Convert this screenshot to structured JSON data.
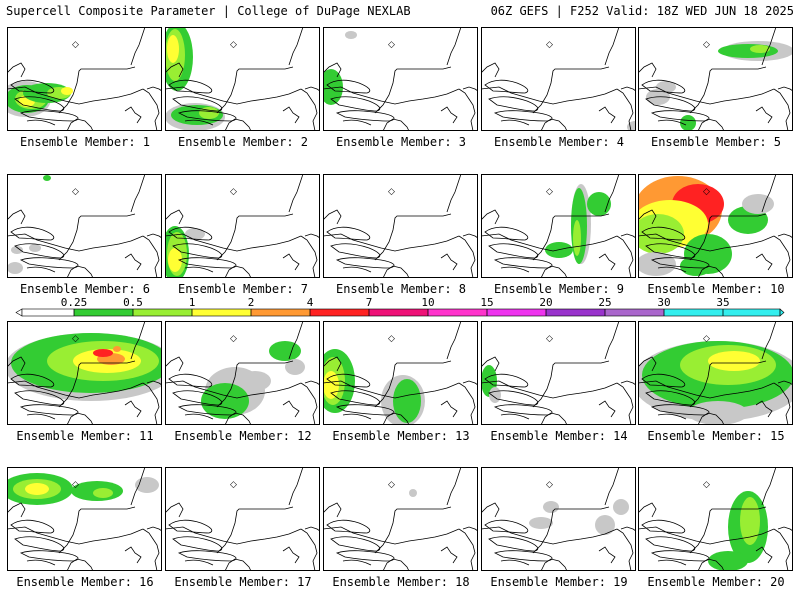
{
  "header": {
    "left": "Supercell Composite Parameter | College of DuPage NEXLAB",
    "right": "06Z GEFS | F252 Valid: 18Z WED JUN 18 2025"
  },
  "members": [
    {
      "label": "Ensemble Member: 1"
    },
    {
      "label": "Ensemble Member: 2"
    },
    {
      "label": "Ensemble Member: 3"
    },
    {
      "label": "Ensemble Member: 4"
    },
    {
      "label": "Ensemble Member: 5"
    },
    {
      "label": "Ensemble Member: 6"
    },
    {
      "label": "Ensemble Member: 7"
    },
    {
      "label": "Ensemble Member: 8"
    },
    {
      "label": "Ensemble Member: 9"
    },
    {
      "label": "Ensemble Member: 10"
    },
    {
      "label": "Ensemble Member: 11"
    },
    {
      "label": "Ensemble Member: 12"
    },
    {
      "label": "Ensemble Member: 13"
    },
    {
      "label": "Ensemble Member: 14"
    },
    {
      "label": "Ensemble Member: 15"
    },
    {
      "label": "Ensemble Member: 16"
    },
    {
      "label": "Ensemble Member: 17"
    },
    {
      "label": "Ensemble Member: 18"
    },
    {
      "label": "Ensemble Member: 19"
    },
    {
      "label": "Ensemble Member: 20"
    }
  ],
  "colorbar": {
    "ticks": [
      "0.25",
      "0.5",
      "1",
      "2",
      "4",
      "7",
      "10",
      "15",
      "20",
      "25",
      "30",
      "35"
    ],
    "colors": [
      "#c8c8c8",
      "#33cc33",
      "#99ee33",
      "#ffff33",
      "#ff9933",
      "#ff2222",
      "#ee1177",
      "#ff33cc",
      "#ee33ee",
      "#9933cc",
      "#aa66cc",
      "#33eeee"
    ]
  }
}
